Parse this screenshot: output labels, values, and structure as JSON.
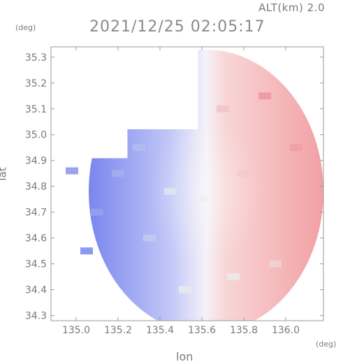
{
  "header": {
    "altitude": "ALT(km) 2.0",
    "timestamp": "2021/12/25 02:05:17"
  },
  "axes": {
    "y_unit": "(deg)",
    "x_unit": "(deg)",
    "xlabel": "lon",
    "ylabel": "lat"
  },
  "chart_data": {
    "type": "heatmap",
    "title": "2021/12/25 02:05:17",
    "subtitle": "ALT(km) 2.0",
    "xlabel": "lon",
    "ylabel": "lat",
    "x_unit": "(deg)",
    "y_unit": "(deg)",
    "xlim": [
      134.88,
      136.18
    ],
    "ylim": [
      34.28,
      35.34
    ],
    "x_ticks": [
      135.0,
      135.2,
      135.4,
      135.6,
      135.8,
      136.0
    ],
    "x_tick_labels": [
      "135.0",
      "135.2",
      "135.4",
      "135.6",
      "135.8",
      "136.0"
    ],
    "y_ticks": [
      34.3,
      34.4,
      34.5,
      34.6,
      34.7,
      34.8,
      34.9,
      35.0,
      35.1,
      35.2,
      35.3
    ],
    "y_tick_labels": [
      "34.3",
      "34.4",
      "34.5",
      "34.6",
      "34.7",
      "34.8",
      "34.9",
      "35.0",
      "35.1",
      "35.2",
      "35.3"
    ],
    "grid": false,
    "colormap": {
      "negative": "#6b78ee",
      "zero": "#ffffff",
      "positive": "#ee6b72"
    },
    "field": {
      "description": "Doppler velocity field, approaching (blue) west, receding (red) east",
      "center_lon": 135.62,
      "center_lat": 34.78,
      "range_deg": 0.56,
      "cells": [
        {
          "lon": 134.98,
          "lat": 34.86,
          "v": -0.8
        },
        {
          "lon": 135.05,
          "lat": 34.55,
          "v": -0.9
        },
        {
          "lon": 135.1,
          "lat": 34.7,
          "v": -0.7
        },
        {
          "lon": 135.2,
          "lat": 34.85,
          "v": -0.6
        },
        {
          "lon": 135.3,
          "lat": 34.95,
          "v": -0.5
        },
        {
          "lon": 135.35,
          "lat": 34.6,
          "v": -0.4
        },
        {
          "lon": 135.45,
          "lat": 34.78,
          "v": -0.2
        },
        {
          "lon": 135.52,
          "lat": 34.4,
          "v": -0.15
        },
        {
          "lon": 135.6,
          "lat": 34.75,
          "v": 0.1
        },
        {
          "lon": 135.7,
          "lat": 35.1,
          "v": 0.4
        },
        {
          "lon": 135.8,
          "lat": 34.85,
          "v": 0.35
        },
        {
          "lon": 135.9,
          "lat": 35.15,
          "v": 0.7
        },
        {
          "lon": 136.05,
          "lat": 34.95,
          "v": 0.65
        },
        {
          "lon": 135.95,
          "lat": 34.5,
          "v": 0.3
        },
        {
          "lon": 135.75,
          "lat": 34.45,
          "v": 0.15
        }
      ]
    }
  }
}
